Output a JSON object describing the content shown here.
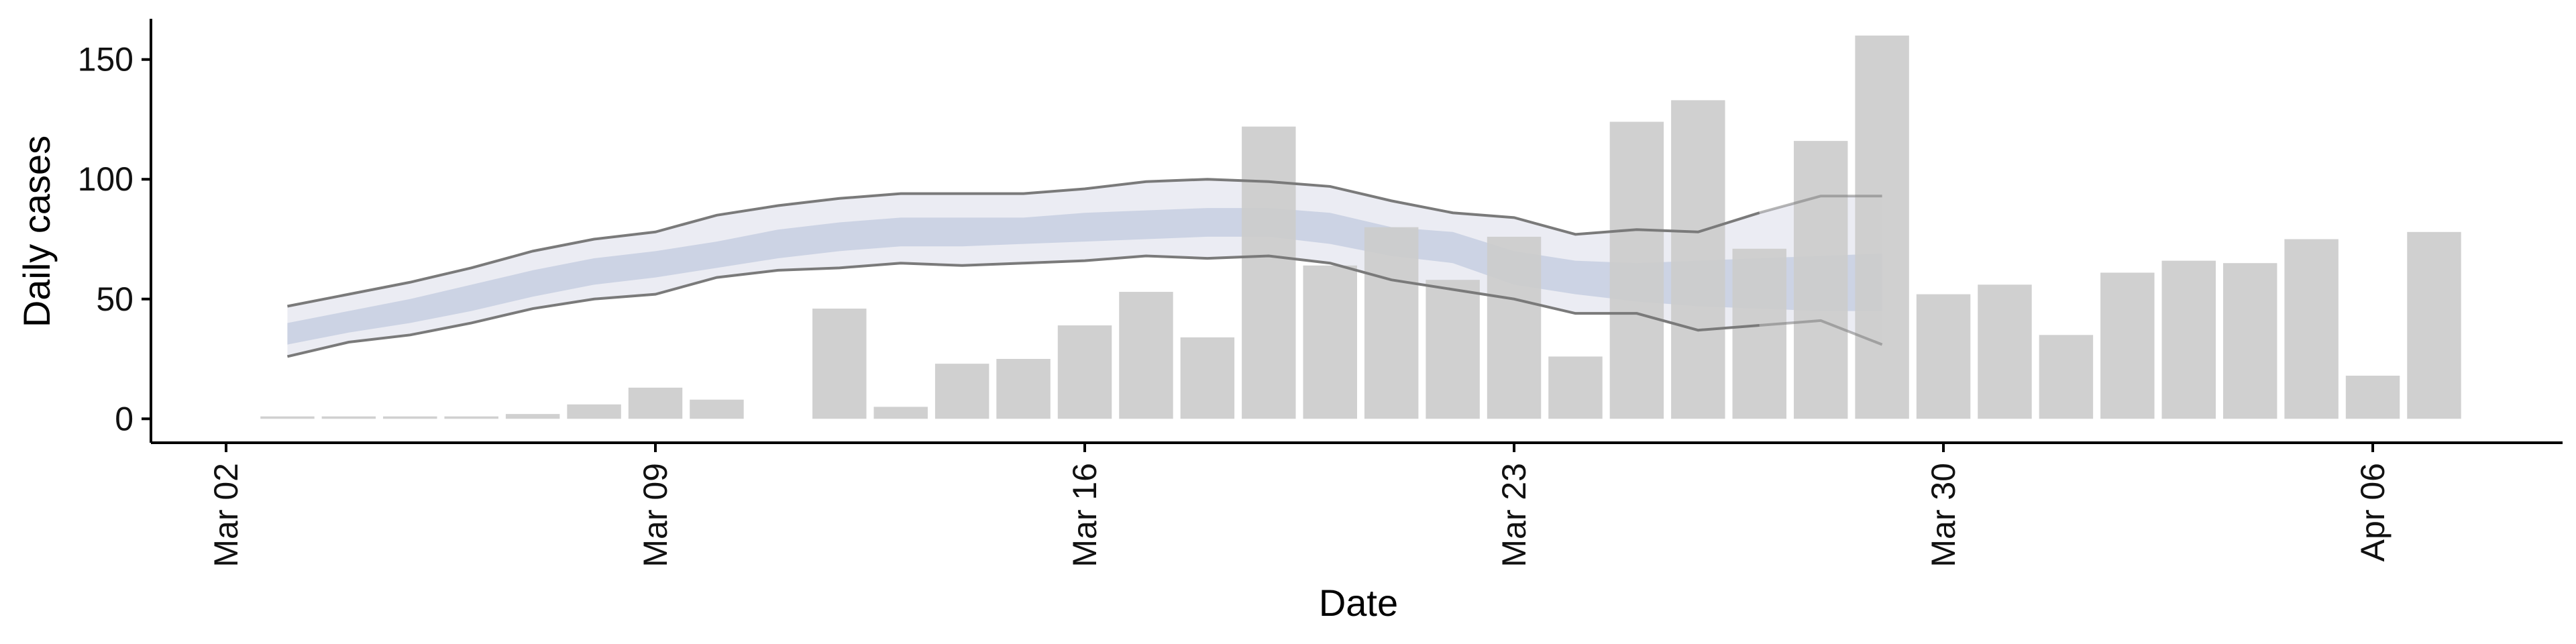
{
  "chart_data": {
    "type": "bar",
    "xlabel": "Date",
    "ylabel": "Daily cases",
    "ylim": [
      -10,
      167
    ],
    "y_ticks": [
      0,
      50,
      100,
      150
    ],
    "x_ticks": [
      {
        "label": "Mar 02",
        "day": 0
      },
      {
        "label": "Mar 09",
        "day": 7
      },
      {
        "label": "Mar 16",
        "day": 14
      },
      {
        "label": "Mar 23",
        "day": 21
      },
      {
        "label": "Mar 30",
        "day": 28
      },
      {
        "label": "Apr 06",
        "day": 35
      }
    ],
    "bars": {
      "name": "Daily cases",
      "color": "#cccccc",
      "dates": [
        "Mar 03",
        "Mar 04",
        "Mar 05",
        "Mar 06",
        "Mar 07",
        "Mar 08",
        "Mar 09",
        "Mar 10",
        "Mar 11",
        "Mar 12",
        "Mar 13",
        "Mar 14",
        "Mar 15",
        "Mar 16",
        "Mar 17",
        "Mar 18",
        "Mar 19",
        "Mar 20",
        "Mar 21",
        "Mar 22",
        "Mar 23",
        "Mar 24",
        "Mar 25",
        "Mar 26",
        "Mar 27",
        "Mar 28",
        "Mar 29",
        "Mar 30",
        "Mar 31",
        "Apr 01",
        "Apr 02",
        "Apr 03",
        "Apr 04",
        "Apr 05",
        "Apr 06",
        "Apr 07"
      ],
      "values": [
        1,
        1,
        1,
        1,
        2,
        6,
        13,
        8,
        0,
        46,
        5,
        23,
        25,
        39,
        53,
        34,
        122,
        64,
        80,
        58,
        76,
        26,
        124,
        133,
        71,
        116,
        160,
        52,
        56,
        35,
        61,
        66,
        65,
        75,
        18,
        78
      ]
    },
    "estimate": {
      "dates": [
        "Mar 03",
        "Mar 04",
        "Mar 05",
        "Mar 06",
        "Mar 07",
        "Mar 08",
        "Mar 09",
        "Mar 10",
        "Mar 11",
        "Mar 12",
        "Mar 13",
        "Mar 14",
        "Mar 15",
        "Mar 16",
        "Mar 17",
        "Mar 18",
        "Mar 19",
        "Mar 20",
        "Mar 21",
        "Mar 22",
        "Mar 23",
        "Mar 24",
        "Mar 25",
        "Mar 26",
        "Mar 27",
        "Mar 28",
        "Mar 29"
      ],
      "upper90": [
        47,
        52,
        57,
        63,
        70,
        75,
        78,
        85,
        89,
        92,
        94,
        94,
        94,
        96,
        99,
        100,
        99,
        97,
        91,
        86,
        84,
        77,
        79,
        78,
        86,
        93,
        93
      ],
      "lower90": [
        26,
        32,
        35,
        40,
        46,
        50,
        52,
        59,
        62,
        63,
        65,
        64,
        65,
        66,
        68,
        67,
        68,
        65,
        58,
        54,
        50,
        44,
        44,
        37,
        39,
        41,
        31
      ],
      "upper50": [
        40,
        45,
        50,
        56,
        62,
        67,
        70,
        74,
        79,
        82,
        84,
        84,
        84,
        86,
        87,
        88,
        88,
        86,
        80,
        78,
        70,
        66,
        65,
        66,
        67,
        68,
        69
      ],
      "lower50": [
        31,
        36,
        40,
        45,
        51,
        56,
        59,
        63,
        67,
        70,
        72,
        72,
        73,
        74,
        75,
        76,
        76,
        73,
        68,
        65,
        56,
        52,
        49,
        47,
        46,
        45,
        45
      ],
      "outer_band_color": "#e9eaf2",
      "inner_band_color": "#c9d0e2",
      "line_color": "#7a7a7a",
      "estimate_start_faded_day": 25
    },
    "grid": false,
    "legend": "none"
  }
}
